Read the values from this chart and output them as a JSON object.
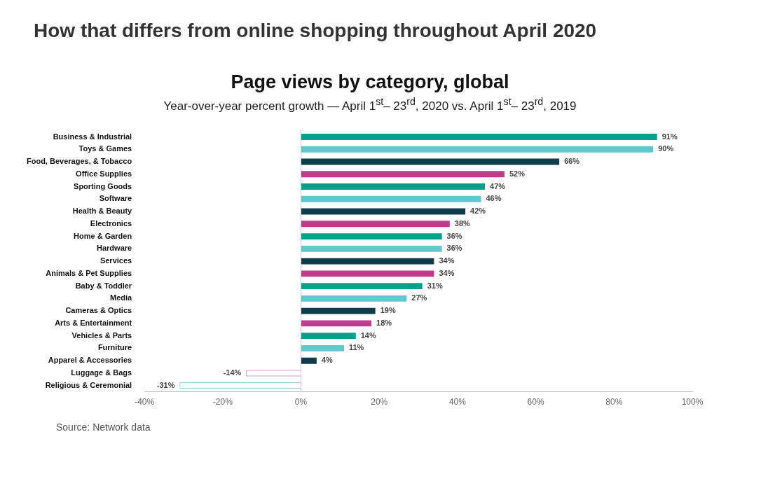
{
  "chart_data": {
    "type": "bar",
    "orientation": "horizontal",
    "title": "Page views by category, global",
    "subtitle": "Year-over-year percent growth — April 1$^{st}$– 23$^{rd}$, 2020 vs. April 1$^{st}$– 23$^{rd}$, 2019",
    "annotations": [
      "How that differs from online shopping throughout April 2020",
      "Source: Network data"
    ],
    "categories": [
      "Business & Industrial",
      "Toys & Games",
      "Food, Beverages, & Tobacco",
      "Office Supplies",
      "Sporting Goods",
      "Software",
      "Health & Beauty",
      "Electronics",
      "Home & Garden",
      "Hardware",
      "Services",
      "Animals & Pet Supplies",
      "Baby & Toddler",
      "Media",
      "Cameras & Optics",
      "Arts & Entertainment",
      "Vehicles & Parts",
      "Furniture",
      "Apparel & Accessories",
      "Luggage & Bags",
      "Religious & Ceremonial"
    ],
    "values": [
      91,
      90,
      66,
      52,
      47,
      46,
      42,
      38,
      36,
      36,
      34,
      34,
      31,
      27,
      19,
      18,
      14,
      11,
      4,
      -14,
      -31
    ],
    "value_labels": [
      "91%",
      "90%",
      "66%",
      "52%",
      "47%",
      "46%",
      "42%",
      "38%",
      "36%",
      "36%",
      "34%",
      "34%",
      "31%",
      "27%",
      "19%",
      "18%",
      "14%",
      "11%",
      "4%",
      "-14%",
      "-31%"
    ],
    "colors": [
      "#00a08a",
      "#5ec8cc",
      "#0e3c4a",
      "#c23a8c",
      "#00a08a",
      "#5ec8cc",
      "#0e3c4a",
      "#c23a8c",
      "#00a08a",
      "#5ec8cc",
      "#0e3c4a",
      "#c23a8c",
      "#00a08a",
      "#5ec8cc",
      "#0e3c4a",
      "#c23a8c",
      "#00a08a",
      "#5ec8cc",
      "#0e3c4a",
      "#c23a8c",
      "#3fb0a0"
    ],
    "xlim": [
      -40,
      100
    ],
    "xticks": [
      {
        "value": -40,
        "label": "-40%"
      },
      {
        "value": -20,
        "label": "-20%"
      },
      {
        "value": 0,
        "label": "0%"
      },
      {
        "value": 20,
        "label": "20%"
      },
      {
        "value": 40,
        "label": "40%"
      },
      {
        "value": 60,
        "label": "60%"
      },
      {
        "value": 80,
        "label": "80%"
      },
      {
        "value": 100,
        "label": "100%"
      }
    ],
    "ref_lines": [
      {
        "axis": "x",
        "value": 0,
        "color": "#cccccc"
      }
    ],
    "grid": false,
    "legend": false
  }
}
